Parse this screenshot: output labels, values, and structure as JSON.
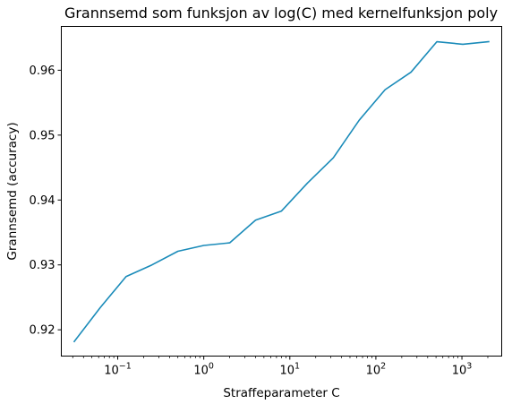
{
  "chart_data": {
    "type": "line",
    "title": "Grannsemd som funksjon av log(C) med kernelfunksjon poly",
    "xlabel": "Straffeparameter C",
    "ylabel": "Grannsemd (accuracy)",
    "xscale": "log",
    "xlim": [
      0.0221,
      2900
    ],
    "ylim": [
      0.91595,
      0.96675
    ],
    "grid": false,
    "x_ticks": [
      {
        "value": 0.1,
        "base": "10",
        "exp": "−1"
      },
      {
        "value": 1,
        "base": "10",
        "exp": "0"
      },
      {
        "value": 10,
        "base": "10",
        "exp": "1"
      },
      {
        "value": 100,
        "base": "10",
        "exp": "2"
      },
      {
        "value": 1000,
        "base": "10",
        "exp": "3"
      }
    ],
    "y_ticks": [
      {
        "value": 0.92,
        "label": "0.92"
      },
      {
        "value": 0.93,
        "label": "0.93"
      },
      {
        "value": 0.94,
        "label": "0.94"
      },
      {
        "value": 0.95,
        "label": "0.95"
      },
      {
        "value": 0.96,
        "label": "0.96"
      }
    ],
    "series": [
      {
        "color": "#1a8bb9",
        "x": [
          0.03125,
          0.0625,
          0.125,
          0.25,
          0.5,
          1,
          2,
          4,
          8,
          16,
          32,
          64,
          128,
          256,
          512,
          1024,
          2048
        ],
        "y": [
          0.9182,
          0.9234,
          0.9282,
          0.93,
          0.9321,
          0.933,
          0.9334,
          0.9369,
          0.9383,
          0.9426,
          0.9465,
          0.9523,
          0.957,
          0.9597,
          0.9644,
          0.964,
          0.9644
        ]
      }
    ]
  }
}
